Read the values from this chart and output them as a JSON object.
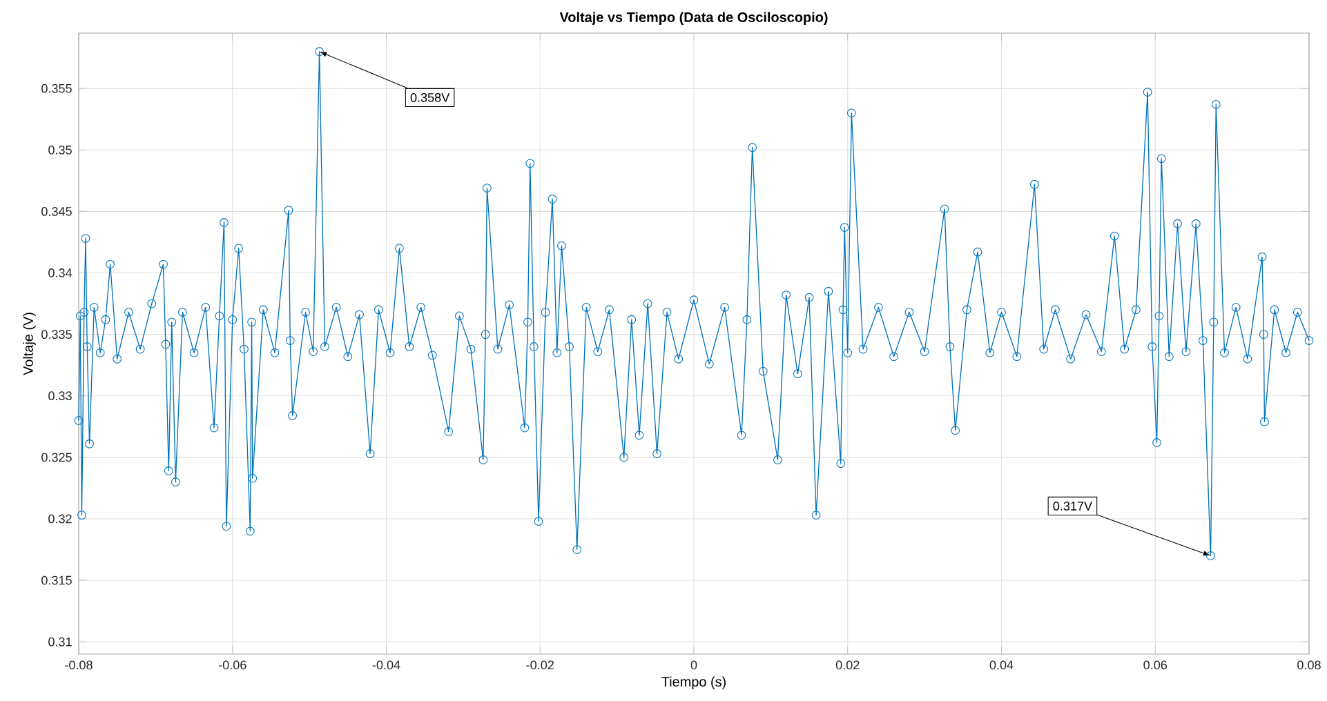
{
  "chart_data": {
    "type": "line",
    "title": "Voltaje vs Tiempo (Data de Osciloscopio)",
    "xlabel": "Tiempo (s)",
    "ylabel": "Voltaje (V)",
    "xlim": [
      -0.08,
      0.08
    ],
    "xticks": [
      -0.08,
      -0.06,
      -0.04,
      -0.02,
      0,
      0.02,
      0.04,
      0.06,
      0.08
    ],
    "ylim": [
      0.309,
      0.3595
    ],
    "yticks": [
      0.31,
      0.315,
      0.32,
      0.325,
      0.33,
      0.335,
      0.34,
      0.345,
      0.35,
      0.355
    ],
    "grid": true,
    "marker": "circle",
    "line_style": "solid",
    "annotations": [
      {
        "text": "0.358V",
        "x": -0.0487,
        "y": 0.358
      },
      {
        "text": "0.317V",
        "x": 0.0672,
        "y": 0.317
      }
    ],
    "series": [
      {
        "color": "#0072bd",
        "x": [
          -0.08,
          -0.0798,
          -0.0796,
          -0.0793,
          -0.0791,
          -0.0789,
          -0.0786,
          -0.078,
          -0.0772,
          -0.0765,
          -0.0759,
          -0.075,
          -0.0735,
          -0.072,
          -0.0705,
          -0.069,
          -0.0687,
          -0.0683,
          -0.0679,
          -0.0674,
          -0.0665,
          -0.065,
          -0.0635,
          -0.0624,
          -0.0617,
          -0.0611,
          -0.0608,
          -0.06,
          -0.0592,
          -0.0585,
          -0.0577,
          -0.0575,
          -0.0574,
          -0.056,
          -0.0545,
          -0.0527,
          -0.0525,
          -0.0522,
          -0.0505,
          -0.0495,
          -0.0487,
          -0.048,
          -0.0465,
          -0.045,
          -0.0435,
          -0.0421,
          -0.041,
          -0.0395,
          -0.0383,
          -0.037,
          -0.0355,
          -0.034,
          -0.0319,
          -0.0305,
          -0.029,
          -0.0274,
          -0.0271,
          -0.0269,
          -0.0255,
          -0.024,
          -0.022,
          -0.0216,
          -0.0213,
          -0.0208,
          -0.0202,
          -0.0193,
          -0.0184,
          -0.0178,
          -0.0172,
          -0.0162,
          -0.0152,
          -0.014,
          -0.0125,
          -0.011,
          -0.0091,
          -0.0081,
          -0.0071,
          -0.006,
          -0.0048,
          -0.0035,
          -0.002,
          0.0,
          0.002,
          0.004,
          0.0062,
          0.0069,
          0.0076,
          0.009,
          0.0109,
          0.012,
          0.0135,
          0.015,
          0.0159,
          0.0175,
          0.0191,
          0.0194,
          0.0196,
          0.02,
          0.0205,
          0.022,
          0.024,
          0.026,
          0.028,
          0.03,
          0.0326,
          0.0333,
          0.034,
          0.0355,
          0.0369,
          0.0385,
          0.04,
          0.042,
          0.0443,
          0.0455,
          0.047,
          0.049,
          0.051,
          0.053,
          0.0547,
          0.056,
          0.0575,
          0.059,
          0.0596,
          0.0602,
          0.0605,
          0.0608,
          0.0618,
          0.0629,
          0.064,
          0.0653,
          0.0662,
          0.0672,
          0.0676,
          0.0679,
          0.069,
          0.0705,
          0.072,
          0.0739,
          0.0741,
          0.0742,
          0.0755,
          0.077,
          0.0785,
          0.08
        ],
        "values": [
          0.328,
          0.3365,
          0.3203,
          0.3368,
          0.3428,
          0.334,
          0.3261,
          0.3372,
          0.3335,
          0.3362,
          0.3407,
          0.333,
          0.3368,
          0.3338,
          0.3375,
          0.3407,
          0.3342,
          0.3239,
          0.336,
          0.323,
          0.3368,
          0.3335,
          0.3372,
          0.3274,
          0.3365,
          0.3441,
          0.3194,
          0.3362,
          0.342,
          0.3338,
          0.319,
          0.336,
          0.3233,
          0.337,
          0.3335,
          0.3451,
          0.3345,
          0.3284,
          0.3368,
          0.3336,
          0.358,
          0.334,
          0.3372,
          0.3332,
          0.3366,
          0.3253,
          0.337,
          0.3335,
          0.342,
          0.334,
          0.3372,
          0.3333,
          0.3271,
          0.3365,
          0.3338,
          0.3248,
          0.335,
          0.3469,
          0.3338,
          0.3374,
          0.3274,
          0.336,
          0.3489,
          0.334,
          0.3198,
          0.3368,
          0.346,
          0.3335,
          0.3422,
          0.334,
          0.3175,
          0.3372,
          0.3336,
          0.337,
          0.325,
          0.3362,
          0.3268,
          0.3375,
          0.3253,
          0.3368,
          0.333,
          0.3378,
          0.3326,
          0.3372,
          0.3268,
          0.3362,
          0.3502,
          0.332,
          0.3248,
          0.3382,
          0.3318,
          0.338,
          0.3203,
          0.3385,
          0.3245,
          0.337,
          0.3437,
          0.3335,
          0.353,
          0.3338,
          0.3372,
          0.3332,
          0.3368,
          0.3336,
          0.3452,
          0.334,
          0.3272,
          0.337,
          0.3417,
          0.3335,
          0.3368,
          0.3332,
          0.3472,
          0.3338,
          0.337,
          0.333,
          0.3366,
          0.3336,
          0.343,
          0.3338,
          0.337,
          0.3547,
          0.334,
          0.3262,
          0.3365,
          0.3493,
          0.3332,
          0.344,
          0.3336,
          0.344,
          0.3345,
          0.317,
          0.336,
          0.3537,
          0.3335,
          0.3372,
          0.333,
          0.3413,
          0.335,
          0.3279,
          0.337,
          0.3335,
          0.3368,
          0.3345
        ]
      }
    ]
  }
}
